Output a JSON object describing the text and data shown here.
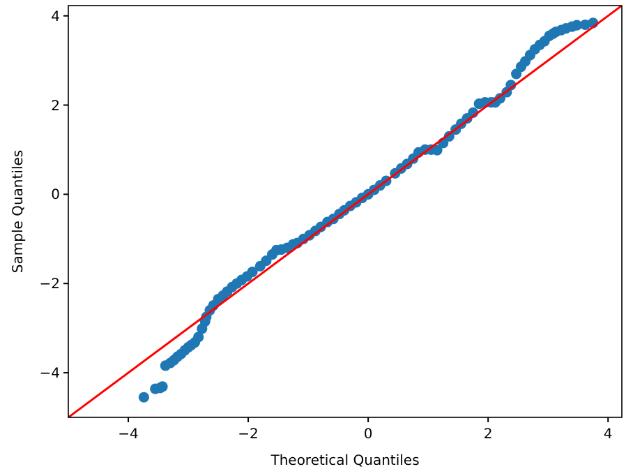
{
  "chart_data": {
    "type": "scatter",
    "xlabel": "Theoretical Quantiles",
    "ylabel": "Sample Quantiles",
    "xlim": [
      -5,
      4.23
    ],
    "ylim": [
      -5,
      4.23
    ],
    "xticks": [
      -4,
      -2,
      0,
      2,
      4
    ],
    "yticks": [
      -4,
      -2,
      0,
      2,
      4
    ],
    "grid": false,
    "series": [
      {
        "color": "#1f77b4",
        "marker": "circle",
        "x": [
          -3.74,
          -3.55,
          -3.47,
          -3.43,
          -3.38,
          -3.3,
          -3.24,
          -3.18,
          -3.12,
          -3.06,
          -3.0,
          -2.95,
          -2.89,
          -2.83,
          -2.77,
          -2.72,
          -2.7,
          -2.64,
          -2.58,
          -2.5,
          -2.42,
          -2.35,
          -2.27,
          -2.19,
          -2.11,
          -2.02,
          -1.93,
          -1.8,
          -1.7,
          -1.6,
          -1.53,
          -1.45,
          -1.35,
          -1.25,
          -1.18,
          -1.08,
          -0.98,
          -0.88,
          -0.79,
          -0.68,
          -0.58,
          -0.48,
          -0.4,
          -0.3,
          -0.2,
          -0.1,
          0,
          0.1,
          0.2,
          0.3,
          0.45,
          0.55,
          0.65,
          0.75,
          0.84,
          0.95,
          1.05,
          1.15,
          1.25,
          1.35,
          1.46,
          1.55,
          1.65,
          1.75,
          1.85,
          1.95,
          2.05,
          2.12,
          2.2,
          2.31,
          2.38,
          2.47,
          2.55,
          2.62,
          2.7,
          2.78,
          2.86,
          2.94,
          3.02,
          3.08,
          3.13,
          3.22,
          3.3,
          3.4,
          3.48,
          3.62,
          3.75
        ],
        "values": [
          -4.55,
          -4.36,
          -4.34,
          -4.31,
          -3.84,
          -3.78,
          -3.72,
          -3.64,
          -3.58,
          -3.5,
          -3.43,
          -3.38,
          -3.32,
          -3.2,
          -3.01,
          -2.85,
          -2.75,
          -2.6,
          -2.49,
          -2.35,
          -2.27,
          -2.18,
          -2.08,
          -2.0,
          -1.92,
          -1.84,
          -1.74,
          -1.61,
          -1.49,
          -1.35,
          -1.25,
          -1.24,
          -1.2,
          -1.12,
          -1.09,
          -1.0,
          -0.92,
          -0.82,
          -0.73,
          -0.62,
          -0.55,
          -0.44,
          -0.36,
          -0.26,
          -0.18,
          -0.08,
          0,
          0.1,
          0.2,
          0.3,
          0.47,
          0.58,
          0.68,
          0.8,
          0.94,
          1.0,
          1.0,
          0.99,
          1.15,
          1.3,
          1.45,
          1.58,
          1.7,
          1.83,
          2.03,
          2.06,
          2.06,
          2.06,
          2.15,
          2.29,
          2.45,
          2.7,
          2.86,
          2.98,
          3.12,
          3.25,
          3.35,
          3.43,
          3.55,
          3.6,
          3.64,
          3.68,
          3.72,
          3.76,
          3.79,
          3.8,
          3.84
        ]
      },
      {
        "type": "line",
        "marker": "none",
        "color": "#ff0000",
        "x": [
          -5,
          4.23
        ],
        "values": [
          -5,
          4.23
        ]
      }
    ]
  }
}
